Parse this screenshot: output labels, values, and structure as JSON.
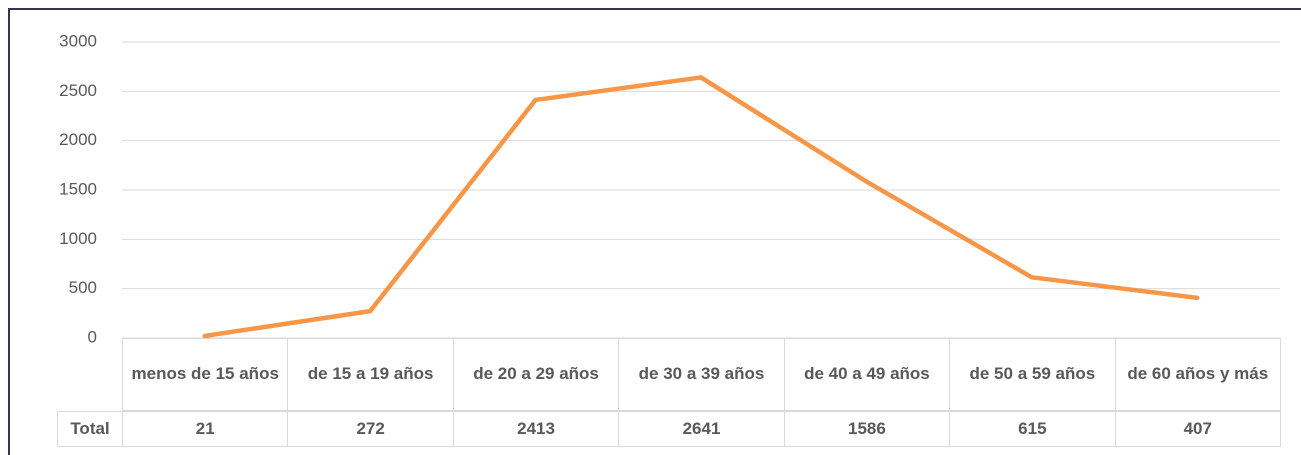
{
  "chart_data": {
    "type": "line",
    "categories": [
      "menos de 15 años",
      "de 15 a 19 años",
      "de 20 a 29 años",
      "de 30 a 39 años",
      "de 40 a 49 años",
      "de 50 a 59 años",
      "de 60 años y más"
    ],
    "series": [
      {
        "name": "Total",
        "color": "#f79646",
        "values": [
          21,
          272,
          2413,
          2641,
          1586,
          615,
          407
        ]
      }
    ],
    "ylim": [
      0,
      3000
    ],
    "yticks": [
      0,
      500,
      1000,
      1500,
      2000,
      2500,
      3000
    ],
    "grid": true
  }
}
